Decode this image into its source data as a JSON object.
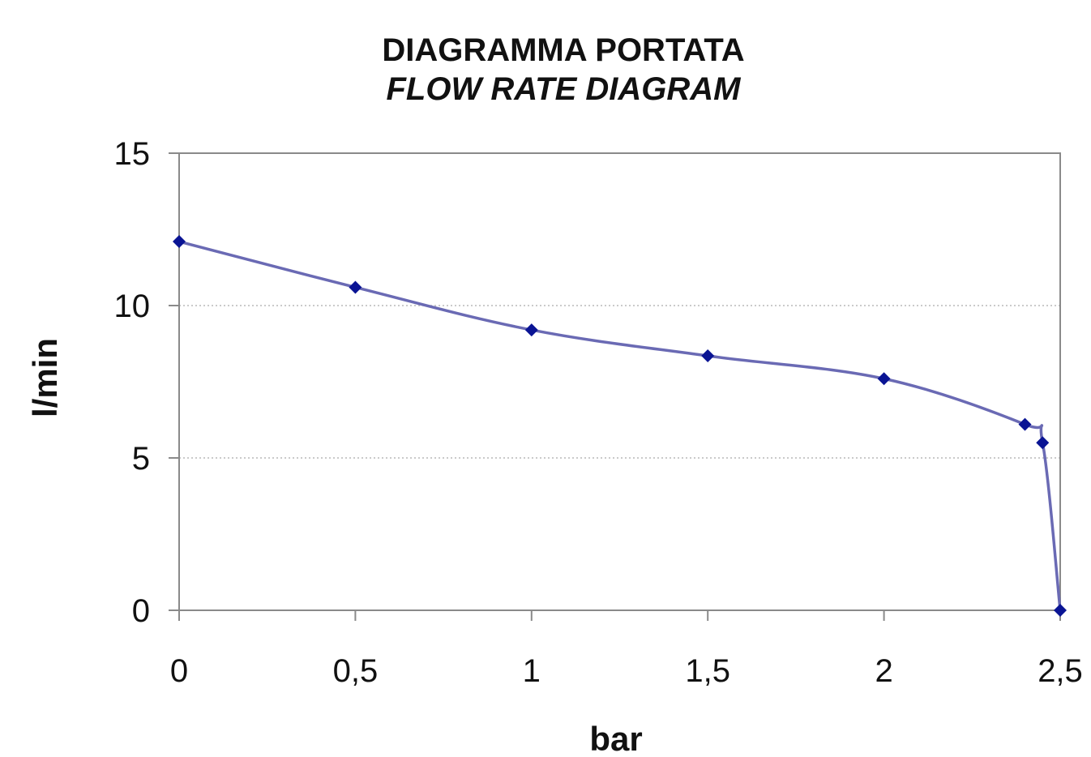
{
  "chart_data": {
    "type": "line",
    "title": "DIAGRAMMA PORTATA",
    "subtitle": "FLOW RATE DIAGRAM",
    "xlabel": "bar",
    "ylabel": "l/min",
    "x": [
      0,
      0.5,
      1,
      1.5,
      2,
      2.4,
      2.45,
      2.5
    ],
    "y": [
      12.1,
      10.6,
      9.2,
      8.35,
      7.6,
      6.1,
      5.5,
      0
    ],
    "xlim": [
      0,
      2.5
    ],
    "ylim": [
      0,
      15
    ],
    "x_ticks": [
      0,
      0.5,
      1,
      1.5,
      2,
      2.5
    ],
    "x_tick_labels": [
      "0",
      "0,5",
      "1",
      "1,5",
      "2",
      "2,5"
    ],
    "y_ticks": [
      0,
      5,
      10,
      15
    ],
    "y_tick_labels": [
      "0",
      "5",
      "10",
      "15"
    ],
    "grid": "horizontal dotted",
    "legend": "none",
    "colors": {
      "line": "#6a6ab4",
      "marker": "#0a1494",
      "axis": "#8a8a8a",
      "grid": "#b8b8b8"
    }
  }
}
